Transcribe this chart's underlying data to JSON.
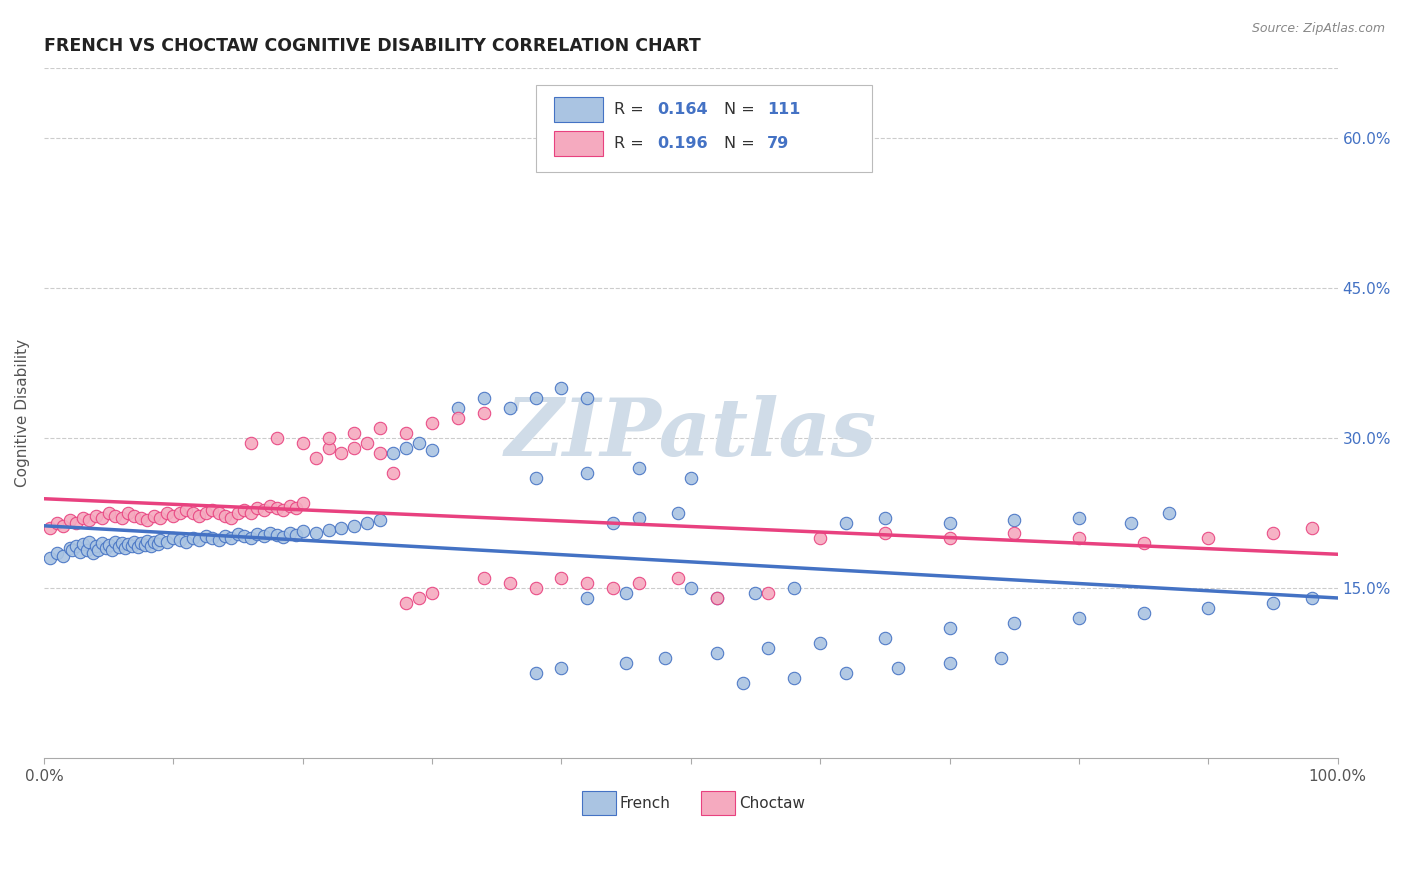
{
  "title": "FRENCH VS CHOCTAW COGNITIVE DISABILITY CORRELATION CHART",
  "source": "Source: ZipAtlas.com",
  "ylabel": "Cognitive Disability",
  "xlim": [
    0.0,
    1.0
  ],
  "ylim": [
    -0.02,
    0.67
  ],
  "x_ticks": [
    0.0,
    0.1,
    0.2,
    0.3,
    0.4,
    0.5,
    0.6,
    0.7,
    0.8,
    0.9,
    1.0
  ],
  "x_tick_labels": [
    "0.0%",
    "",
    "",
    "",
    "",
    "",
    "",
    "",
    "",
    "",
    "100.0%"
  ],
  "y_ticks": [
    0.15,
    0.3,
    0.45,
    0.6
  ],
  "y_tick_labels": [
    "15.0%",
    "30.0%",
    "45.0%",
    "60.0%"
  ],
  "french_R": 0.164,
  "french_N": 111,
  "choctaw_R": 0.196,
  "choctaw_N": 79,
  "french_color": "#aac4e2",
  "choctaw_color": "#f5aabf",
  "french_line_color": "#4472c4",
  "choctaw_line_color": "#e8417f",
  "background_color": "#ffffff",
  "grid_color": "#cccccc",
  "watermark_color": "#d0dce8",
  "french_x": [
    0.005,
    0.01,
    0.015,
    0.02,
    0.022,
    0.025,
    0.028,
    0.03,
    0.033,
    0.035,
    0.038,
    0.04,
    0.042,
    0.045,
    0.048,
    0.05,
    0.053,
    0.055,
    0.058,
    0.06,
    0.063,
    0.065,
    0.068,
    0.07,
    0.073,
    0.075,
    0.078,
    0.08,
    0.083,
    0.085,
    0.088,
    0.09,
    0.095,
    0.1,
    0.105,
    0.11,
    0.115,
    0.12,
    0.125,
    0.13,
    0.135,
    0.14,
    0.145,
    0.15,
    0.155,
    0.16,
    0.165,
    0.17,
    0.175,
    0.18,
    0.185,
    0.19,
    0.195,
    0.2,
    0.21,
    0.22,
    0.23,
    0.24,
    0.25,
    0.26,
    0.27,
    0.28,
    0.29,
    0.3,
    0.32,
    0.34,
    0.36,
    0.38,
    0.4,
    0.42,
    0.44,
    0.46,
    0.49,
    0.42,
    0.45,
    0.5,
    0.52,
    0.55,
    0.58,
    0.62,
    0.65,
    0.7,
    0.75,
    0.8,
    0.84,
    0.87,
    0.38,
    0.4,
    0.45,
    0.48,
    0.52,
    0.56,
    0.6,
    0.65,
    0.7,
    0.75,
    0.8,
    0.85,
    0.9,
    0.95,
    0.98,
    0.38,
    0.42,
    0.46,
    0.5,
    0.54,
    0.58,
    0.62,
    0.66,
    0.7,
    0.74
  ],
  "french_y": [
    0.18,
    0.185,
    0.182,
    0.19,
    0.188,
    0.192,
    0.186,
    0.194,
    0.188,
    0.196,
    0.185,
    0.192,
    0.188,
    0.195,
    0.19,
    0.193,
    0.188,
    0.196,
    0.191,
    0.195,
    0.19,
    0.194,
    0.192,
    0.196,
    0.191,
    0.195,
    0.193,
    0.197,
    0.192,
    0.196,
    0.194,
    0.198,
    0.196,
    0.2,
    0.198,
    0.196,
    0.2,
    0.198,
    0.202,
    0.2,
    0.198,
    0.202,
    0.2,
    0.204,
    0.202,
    0.2,
    0.204,
    0.202,
    0.205,
    0.203,
    0.201,
    0.205,
    0.203,
    0.207,
    0.205,
    0.208,
    0.21,
    0.212,
    0.215,
    0.218,
    0.285,
    0.29,
    0.295,
    0.288,
    0.33,
    0.34,
    0.33,
    0.34,
    0.35,
    0.34,
    0.215,
    0.22,
    0.225,
    0.14,
    0.145,
    0.15,
    0.14,
    0.145,
    0.15,
    0.215,
    0.22,
    0.215,
    0.218,
    0.22,
    0.215,
    0.225,
    0.065,
    0.07,
    0.075,
    0.08,
    0.085,
    0.09,
    0.095,
    0.1,
    0.11,
    0.115,
    0.12,
    0.125,
    0.13,
    0.135,
    0.14,
    0.26,
    0.265,
    0.27,
    0.26,
    0.055,
    0.06,
    0.065,
    0.07,
    0.075,
    0.08
  ],
  "choctaw_x": [
    0.005,
    0.01,
    0.015,
    0.02,
    0.025,
    0.03,
    0.035,
    0.04,
    0.045,
    0.05,
    0.055,
    0.06,
    0.065,
    0.07,
    0.075,
    0.08,
    0.085,
    0.09,
    0.095,
    0.1,
    0.105,
    0.11,
    0.115,
    0.12,
    0.125,
    0.13,
    0.135,
    0.14,
    0.145,
    0.15,
    0.155,
    0.16,
    0.165,
    0.17,
    0.175,
    0.18,
    0.185,
    0.19,
    0.195,
    0.2,
    0.21,
    0.22,
    0.23,
    0.24,
    0.25,
    0.26,
    0.27,
    0.28,
    0.29,
    0.3,
    0.34,
    0.36,
    0.38,
    0.4,
    0.42,
    0.44,
    0.46,
    0.49,
    0.52,
    0.56,
    0.6,
    0.65,
    0.7,
    0.75,
    0.8,
    0.85,
    0.9,
    0.95,
    0.98,
    0.16,
    0.18,
    0.2,
    0.22,
    0.24,
    0.26,
    0.28,
    0.3,
    0.32,
    0.34
  ],
  "choctaw_y": [
    0.21,
    0.215,
    0.212,
    0.218,
    0.215,
    0.22,
    0.218,
    0.222,
    0.22,
    0.225,
    0.222,
    0.22,
    0.225,
    0.222,
    0.22,
    0.218,
    0.222,
    0.22,
    0.225,
    0.222,
    0.225,
    0.228,
    0.225,
    0.222,
    0.225,
    0.228,
    0.225,
    0.222,
    0.22,
    0.225,
    0.228,
    0.225,
    0.23,
    0.228,
    0.232,
    0.23,
    0.228,
    0.232,
    0.23,
    0.235,
    0.28,
    0.29,
    0.285,
    0.29,
    0.295,
    0.285,
    0.265,
    0.135,
    0.14,
    0.145,
    0.16,
    0.155,
    0.15,
    0.16,
    0.155,
    0.15,
    0.155,
    0.16,
    0.14,
    0.145,
    0.2,
    0.205,
    0.2,
    0.205,
    0.2,
    0.195,
    0.2,
    0.205,
    0.21,
    0.295,
    0.3,
    0.295,
    0.3,
    0.305,
    0.31,
    0.305,
    0.315,
    0.32,
    0.325
  ]
}
